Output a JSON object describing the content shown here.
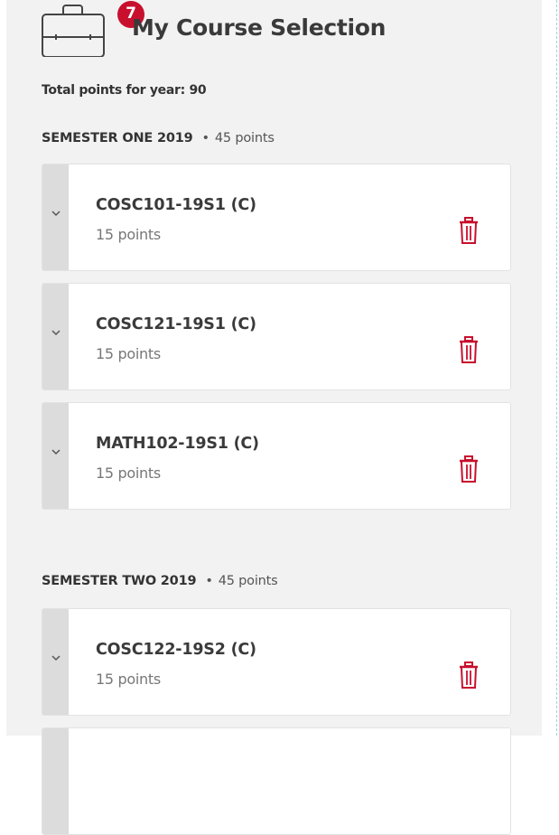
{
  "header": {
    "title": "My Course Selection",
    "badge_count": "7",
    "icon": "briefcase-icon"
  },
  "total_points": "Total points for year: 90",
  "colors": {
    "accent": "#c8102e",
    "panel_bg": "#f2f2f2"
  },
  "semesters": [
    {
      "name": "SEMESTER ONE 2019",
      "points": "45 points",
      "courses": [
        {
          "code": "COSC101-19S1 (C)",
          "points": "15 points"
        },
        {
          "code": "COSC121-19S1 (C)",
          "points": "15 points"
        },
        {
          "code": "MATH102-19S1 (C)",
          "points": "15 points"
        }
      ]
    },
    {
      "name": "SEMESTER TWO 2019",
      "points": "45 points",
      "courses": [
        {
          "code": "COSC122-19S2 (C)",
          "points": "15 points"
        }
      ]
    }
  ]
}
